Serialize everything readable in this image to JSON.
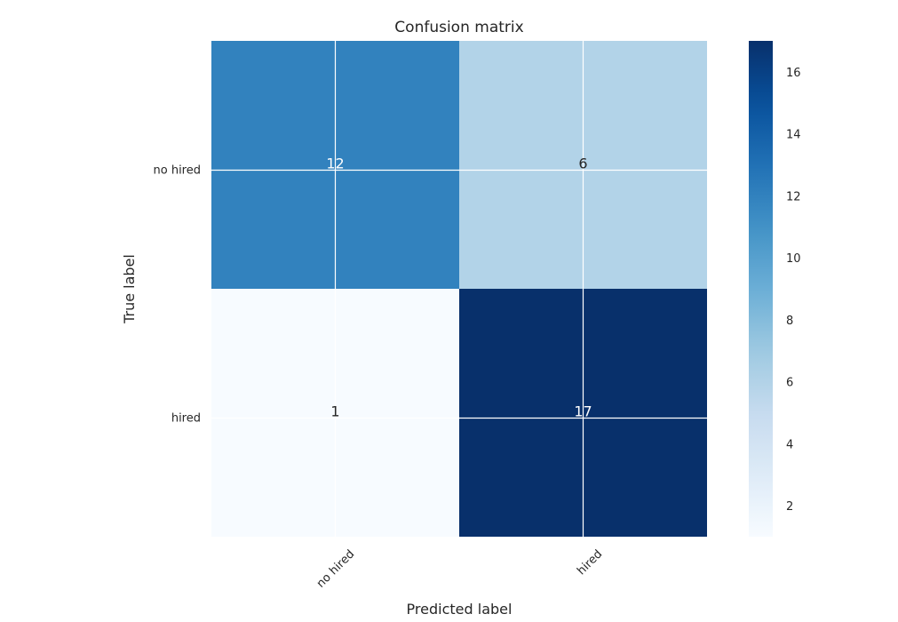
{
  "chart_data": {
    "type": "heatmap",
    "title": "Confusion matrix",
    "xlabel": "Predicted label",
    "ylabel": "True label",
    "x_categories": [
      "no hired",
      "hired"
    ],
    "y_categories": [
      "no hired",
      "hired"
    ],
    "values": [
      [
        12,
        6
      ],
      [
        1,
        17
      ]
    ],
    "colormap": "Blues",
    "color_range": [
      1,
      17
    ],
    "colorbar_ticks": [
      2,
      4,
      6,
      8,
      10,
      12,
      14,
      16
    ],
    "colors": {
      "low": "#f7fbff",
      "high": "#08306b",
      "grid": "#ffffff",
      "text_dark": "#262626",
      "text_light": "#ffffff"
    }
  }
}
